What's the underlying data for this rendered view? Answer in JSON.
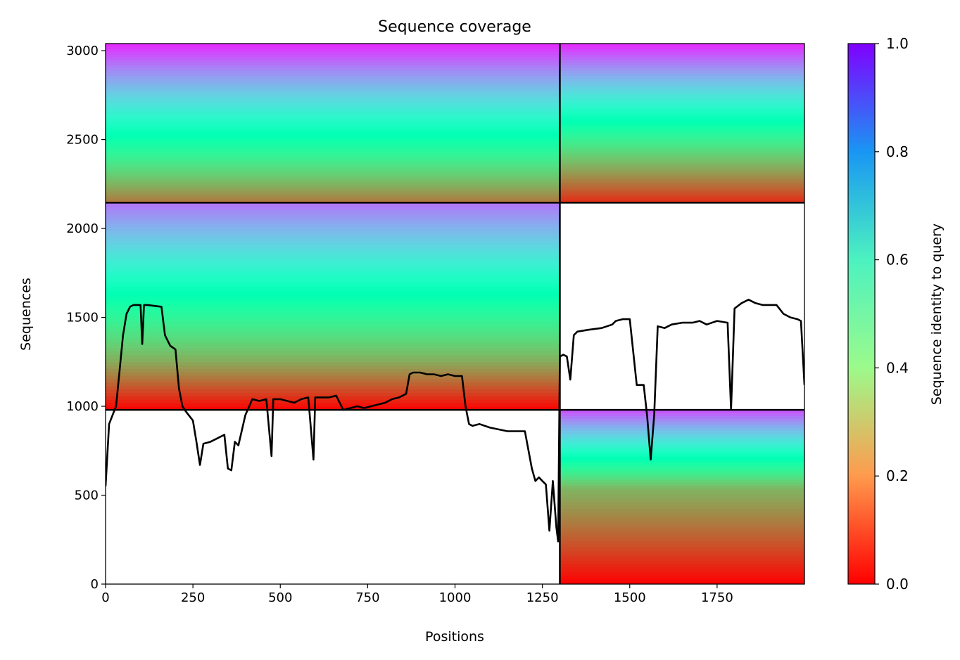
{
  "chart_data": {
    "type": "heatmap",
    "title": "Sequence coverage",
    "xlabel": "Positions",
    "ylabel": "Sequences",
    "xlim": [
      0,
      2000
    ],
    "ylim": [
      0,
      3040
    ],
    "x_ticks": [
      0,
      250,
      500,
      750,
      1000,
      1250,
      1500,
      1750
    ],
    "x_tick_labels": [
      "0",
      "250",
      "500",
      "750",
      "1000",
      "1250",
      "1500",
      "1750"
    ],
    "y_ticks": [
      0,
      500,
      1000,
      1500,
      2000,
      2500,
      3000
    ],
    "y_tick_labels": [
      "0",
      "500",
      "1000",
      "1500",
      "2000",
      "2500",
      "3000"
    ],
    "colorbar": {
      "label": "Sequence identity to query",
      "range": [
        0,
        1
      ],
      "ticks": [
        0,
        0.2,
        0.4,
        0.6,
        0.8,
        1.0
      ],
      "tick_labels": [
        "0.0",
        "0.2",
        "0.4",
        "0.6",
        "0.8",
        "1.0"
      ],
      "colormap": "rainbow_r"
    },
    "chain_boundaries": {
      "x": [
        1300
      ],
      "y": [
        980,
        2145
      ]
    },
    "grid": false,
    "legend": "none",
    "blocks": [
      {
        "x": [
          0,
          1300
        ],
        "y": [
          2145,
          3040
        ],
        "id_top": 0.95,
        "id_bottom": 0.15,
        "split": 0.3
      },
      {
        "x": [
          1300,
          2000
        ],
        "y": [
          2145,
          3040
        ],
        "id_top": 0.95,
        "id_bottom": 0.05,
        "split": 0.3
      },
      {
        "x": [
          0,
          1300
        ],
        "y": [
          980,
          2145
        ],
        "id_top": 0.85,
        "id_bottom": 0.0,
        "split": 0.25
      },
      {
        "x": [
          1300,
          2000
        ],
        "y": [
          0,
          980
        ],
        "id_top": 0.9,
        "id_bottom": 0.0,
        "split": 0.55
      }
    ],
    "coverage": {
      "x": [
        0,
        10,
        20,
        30,
        40,
        50,
        60,
        70,
        80,
        100,
        105,
        110,
        120,
        160,
        170,
        185,
        200,
        210,
        220,
        230,
        250,
        260,
        270,
        280,
        300,
        320,
        340,
        350,
        360,
        370,
        380,
        400,
        420,
        440,
        460,
        475,
        480,
        500,
        520,
        540,
        560,
        580,
        595,
        600,
        620,
        640,
        660,
        680,
        700,
        720,
        740,
        760,
        780,
        800,
        820,
        840,
        860,
        870,
        880,
        900,
        920,
        940,
        960,
        980,
        1000,
        1020,
        1030,
        1040,
        1050,
        1070,
        1100,
        1150,
        1200,
        1220,
        1230,
        1240,
        1250,
        1260,
        1270,
        1280,
        1290,
        1295,
        1300,
        1310,
        1320,
        1330,
        1340,
        1350,
        1380,
        1420,
        1450,
        1460,
        1480,
        1500,
        1520,
        1540,
        1550,
        1560,
        1570,
        1580,
        1600,
        1620,
        1650,
        1680,
        1700,
        1720,
        1750,
        1780,
        1790,
        1800,
        1820,
        1840,
        1860,
        1880,
        1900,
        1920,
        1940,
        1960,
        1980,
        1990,
        2000
      ],
      "y": [
        550,
        900,
        950,
        1000,
        1200,
        1400,
        1520,
        1560,
        1570,
        1570,
        1350,
        1570,
        1570,
        1560,
        1400,
        1340,
        1320,
        1100,
        1000,
        970,
        920,
        800,
        670,
        790,
        800,
        820,
        840,
        650,
        640,
        800,
        780,
        950,
        1040,
        1030,
        1040,
        720,
        1040,
        1040,
        1030,
        1020,
        1040,
        1050,
        700,
        1050,
        1050,
        1050,
        1060,
        980,
        990,
        1000,
        990,
        1000,
        1010,
        1020,
        1040,
        1050,
        1070,
        1180,
        1190,
        1190,
        1180,
        1180,
        1170,
        1180,
        1170,
        1170,
        1000,
        900,
        890,
        900,
        880,
        860,
        860,
        650,
        580,
        600,
        580,
        560,
        300,
        580,
        320,
        240,
        1280,
        1290,
        1280,
        1150,
        1400,
        1420,
        1430,
        1440,
        1460,
        1480,
        1490,
        1490,
        1120,
        1120,
        940,
        700,
        950,
        1450,
        1440,
        1460,
        1470,
        1470,
        1480,
        1460,
        1480,
        1470,
        980,
        1550,
        1580,
        1600,
        1580,
        1570,
        1570,
        1570,
        1520,
        1500,
        1490,
        1480,
        1120
      ]
    }
  }
}
